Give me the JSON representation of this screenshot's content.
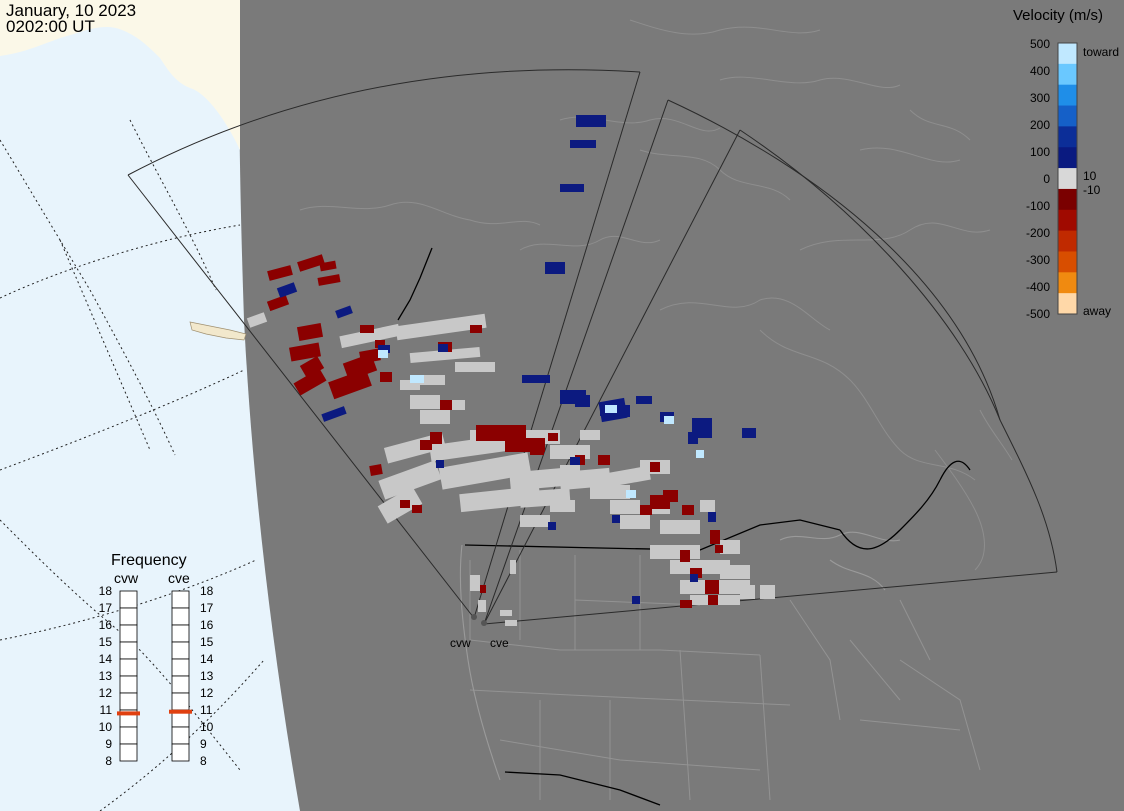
{
  "header": {
    "date": "January, 10 2023",
    "time": "0202:00 UT"
  },
  "colors": {
    "ocean": "#e8f4fc",
    "land_night": "#7a7a7a",
    "land_day": "#fbf8e8",
    "ground_scatter": "#c8c8c8"
  },
  "velocity_scale": {
    "title": "Velocity (m/s)",
    "ticks": [
      "500",
      "400",
      "300",
      "200",
      "100",
      "10",
      "0",
      "-10",
      "-100",
      "-200",
      "-300",
      "-400",
      "-500"
    ],
    "toward_label": "toward",
    "away_label": "away",
    "colors_top_to_bottom": [
      "#c0e8ff",
      "#6ac8ff",
      "#1f8ee8",
      "#1560c8",
      "#0c2e98",
      "#0a1a80",
      "#d8d8d8",
      "#7a0000",
      "#a00a00",
      "#c02a00",
      "#d84e00",
      "#f08a10",
      "#ffd8a8"
    ]
  },
  "radars": {
    "west_label": "cvw",
    "east_label": "cve"
  },
  "frequency": {
    "title": "Frequency",
    "left_label": "cvw",
    "right_label": "cve",
    "scale": [
      "18",
      "17",
      "16",
      "15",
      "14",
      "13",
      "12",
      "11",
      "10",
      "9",
      "8"
    ],
    "cvw_mhz": 10.8,
    "cve_mhz": 10.9
  }
}
